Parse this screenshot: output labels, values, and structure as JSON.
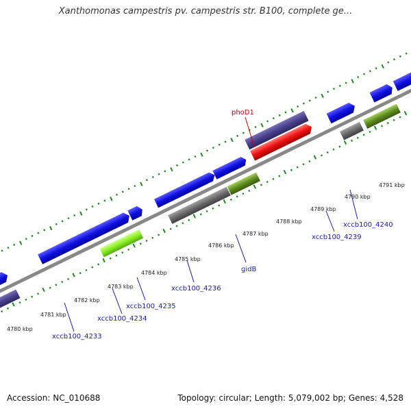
{
  "title": "Xanthomonas campestris pv. campestris str. B100, complete ge...",
  "scale": {
    "labels": [
      "4780 kbp",
      "4781 kbp",
      "4782 kbp",
      "4783 kbp",
      "4784 kbp",
      "4785 kbp",
      "4786 kbp",
      "4787 kbp",
      "4788 kbp",
      "4789 kbp",
      "4790 kbp",
      "4791 kbp"
    ]
  },
  "genes": {
    "phoD1": "phoD1",
    "gidB": "gidB",
    "xccb100_4233": "xccb100_4233",
    "xccb100_4234": "xccb100_4234",
    "xccb100_4235": "xccb100_4235",
    "xccb100_4236": "xccb100_4236",
    "xccb100_4239": "xccb100_4239",
    "xccb100_4240": "xccb100_4240"
  },
  "colors": {
    "cds": "#1010e0",
    "gene_purple": "#4a3f8c",
    "gene_red": "#ee1111",
    "gene_gray": "#6a6a6a",
    "gene_green": "#5e8c1e",
    "gene_lime": "#88ee22",
    "backbone": "#888888",
    "ticks": "#1a8a1a",
    "label_blue": "#1a1aaa",
    "label_red": "#cc0000"
  },
  "footer": {
    "accession": "Accession: NC_010688",
    "summary": "Topology: circular; Length: 5,079,002 bp; Genes: 4,528"
  }
}
